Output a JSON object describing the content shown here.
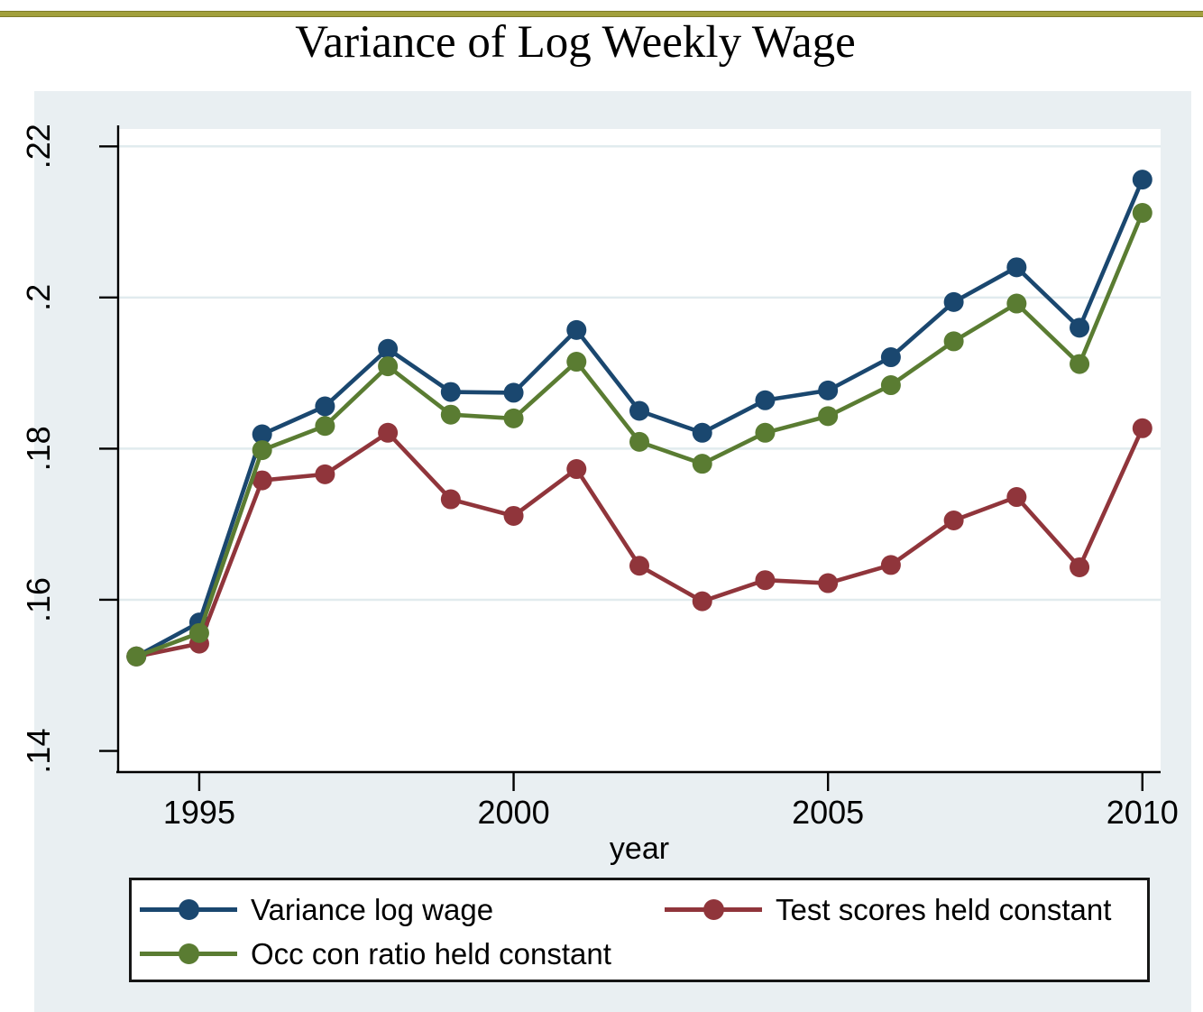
{
  "title": "Variance of Log Weekly Wage",
  "top_rule_color": "#a2a03c",
  "chart_data": {
    "type": "line",
    "title": "Variance of Log Weekly Wage",
    "xlabel": "year",
    "ylabel": "",
    "x": [
      1994,
      1995,
      1996,
      1997,
      1998,
      1999,
      2000,
      2001,
      2002,
      2003,
      2004,
      2005,
      2006,
      2007,
      2008,
      2009,
      2010
    ],
    "series": [
      {
        "name": "Variance log wage",
        "color": "#1a476f",
        "values": [
          0.1525,
          0.157,
          0.1819,
          0.1856,
          0.1932,
          0.1875,
          0.1874,
          0.1957,
          0.185,
          0.1821,
          0.1864,
          0.1877,
          0.1921,
          0.1994,
          0.204,
          0.196,
          0.2156
        ]
      },
      {
        "name": "Test scores held constant",
        "color": "#90353b",
        "values": [
          0.1525,
          0.1542,
          0.1758,
          0.1766,
          0.1821,
          0.1733,
          0.1711,
          0.1773,
          0.1645,
          0.1598,
          0.1626,
          0.1622,
          0.1646,
          0.1705,
          0.1736,
          0.1643,
          0.1827
        ]
      },
      {
        "name": "Occ con ratio held constant",
        "color": "#5a7c32",
        "values": [
          0.1525,
          0.1556,
          0.1798,
          0.183,
          0.1909,
          0.1845,
          0.184,
          0.1915,
          0.1809,
          0.178,
          0.1821,
          0.1843,
          0.1884,
          0.1942,
          0.1992,
          0.1912,
          0.2112
        ]
      }
    ],
    "x_ticks": [
      {
        "value": 1995,
        "label": "1995"
      },
      {
        "value": 2000,
        "label": "2000"
      },
      {
        "value": 2005,
        "label": "2005"
      },
      {
        "value": 2010,
        "label": "2010"
      }
    ],
    "y_ticks": [
      {
        "value": 0.14,
        "label": ".14"
      },
      {
        "value": 0.16,
        "label": ".16"
      },
      {
        "value": 0.18,
        "label": ".18"
      },
      {
        "value": 0.2,
        "label": ".2"
      },
      {
        "value": 0.22,
        "label": ".22"
      }
    ],
    "y_gridlines": [
      0.16,
      0.18,
      0.2,
      0.22
    ],
    "xlim": [
      1993.71,
      2010.29
    ],
    "ylim": [
      0.1372,
      0.2223
    ],
    "grid": true,
    "legend_position": "bottom",
    "marker": "circle",
    "colors": {
      "panel_bg": "#e9eff2",
      "plot_bg": "#ffffff",
      "grid": "#e1ebee",
      "axis": "#000000",
      "text": "#000000"
    }
  },
  "legend": {
    "entries": [
      {
        "series_index": 0,
        "column": 1,
        "row": 1
      },
      {
        "series_index": 2,
        "column": 1,
        "row": 2
      },
      {
        "series_index": 1,
        "column": 2,
        "row": 1
      }
    ]
  }
}
